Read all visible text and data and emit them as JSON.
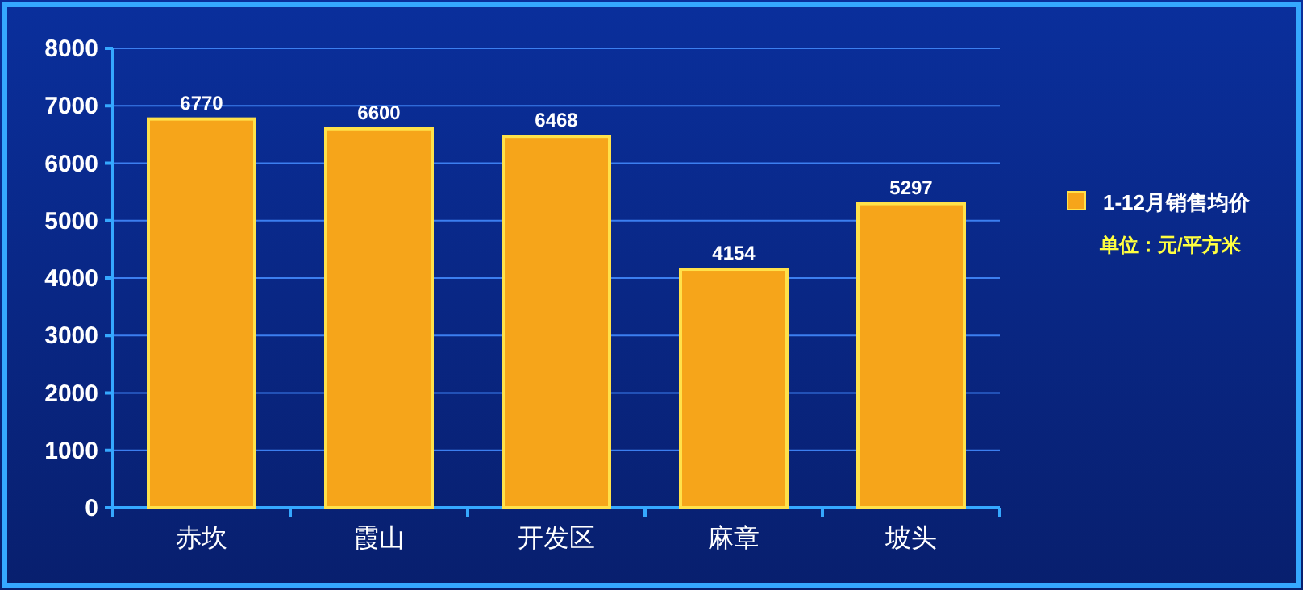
{
  "chart_data": {
    "type": "bar",
    "categories": [
      "赤坎",
      "霞山",
      "开发区",
      "麻章",
      "坡头"
    ],
    "series": [
      {
        "name": "1-12月销售均价",
        "color": "#f6a51a",
        "values": [
          6770,
          6600,
          6468,
          4154,
          5297
        ]
      }
    ],
    "ylim": [
      0,
      8000
    ],
    "yticks": [
      0,
      1000,
      2000,
      3000,
      4000,
      5000,
      6000,
      7000,
      8000
    ],
    "grid": "y",
    "legend": "right",
    "data_labels": true,
    "annotations": [
      "单位：元/平方米"
    ]
  }
}
